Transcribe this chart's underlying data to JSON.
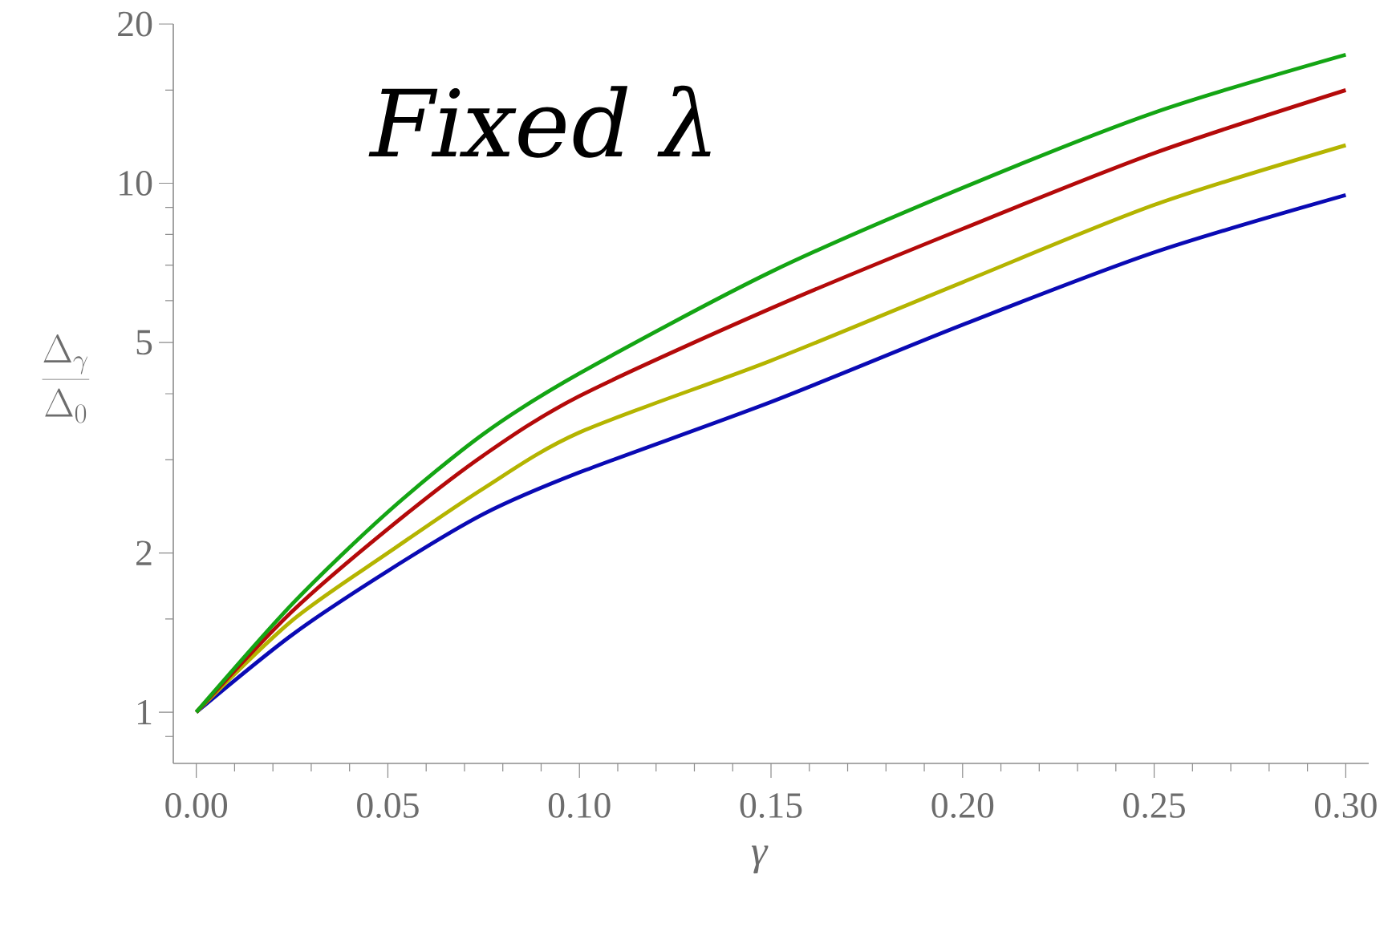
{
  "chart_data": {
    "type": "line",
    "title": "Fixed λ",
    "xlabel": "γ",
    "ylabel": "\\frac{\\Delta_{\\gamma}}{\\Delta_{0}}",
    "x": [
      0,
      0.025,
      0.05,
      0.075,
      0.1,
      0.15,
      0.2,
      0.25,
      0.3
    ],
    "series": [
      {
        "color": "#0a0ab4",
        "values": [
          1.0,
          1.4,
          1.85,
          2.37,
          2.84,
          3.86,
          5.4,
          7.4,
          9.5
        ]
      },
      {
        "color": "#b4b400",
        "values": [
          1.0,
          1.49,
          2.0,
          2.65,
          3.38,
          4.62,
          6.5,
          9.1,
          11.8
        ]
      },
      {
        "color": "#b40a0a",
        "values": [
          1.0,
          1.55,
          2.22,
          3.06,
          3.96,
          5.8,
          8.2,
          11.4,
          15.0
        ]
      },
      {
        "color": "#14a514",
        "values": [
          1.0,
          1.6,
          2.39,
          3.36,
          4.37,
          6.8,
          9.8,
          13.6,
          17.5
        ]
      }
    ],
    "log": "y",
    "xlim": [
      -0.006,
      0.306
    ],
    "ylim": [
      0.8,
      20
    ],
    "xticks": [
      {
        "value": 0,
        "label": "0.00"
      },
      {
        "value": 0.05,
        "label": "0.05"
      },
      {
        "value": 0.1,
        "label": "0.10"
      },
      {
        "value": 0.15,
        "label": "0.15"
      },
      {
        "value": 0.2,
        "label": "0.20"
      },
      {
        "value": 0.25,
        "label": "0.25"
      },
      {
        "value": 0.3,
        "label": "0.30"
      }
    ],
    "yticks": [
      1,
      2,
      5,
      10,
      20
    ]
  }
}
